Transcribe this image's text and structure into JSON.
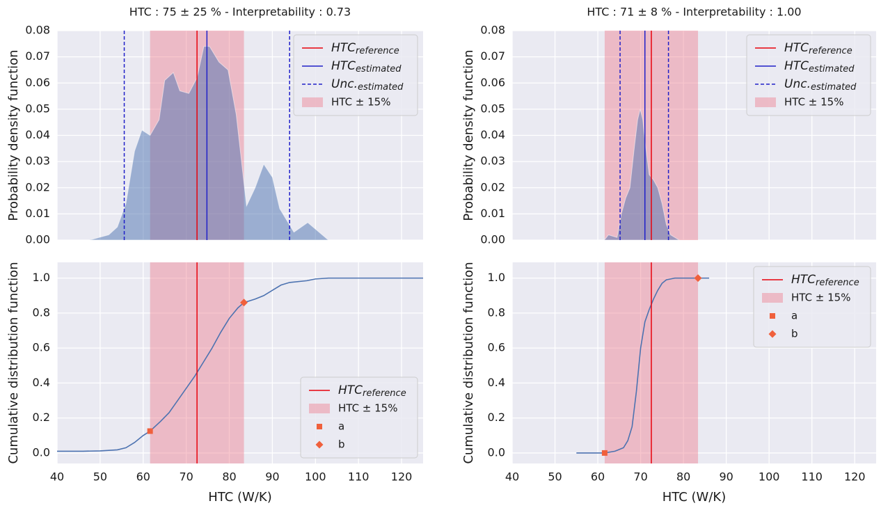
{
  "chart_data": [
    {
      "type": "area",
      "title": "HTC : 75 ± 25 % - Interpretability : 0.73",
      "ylabel": "Probability density function",
      "xlim": [
        40,
        125
      ],
      "ylim": [
        0,
        0.08
      ],
      "xticks": [
        40,
        50,
        60,
        70,
        80,
        90,
        100,
        110,
        120
      ],
      "yticks": [
        {
          "value": 0,
          "label": "0.00"
        },
        0.01,
        0.02,
        0.03,
        0.04,
        0.05,
        0.06,
        0.07,
        0.08
      ],
      "grid": true,
      "legend": "upper right",
      "series": [
        {
          "color": "#4c72b0",
          "x": [
            47.5,
            52,
            54,
            56,
            58,
            59.7,
            61.6,
            63.7,
            65,
            67,
            68.5,
            70.6,
            72.5,
            74.1,
            75.4,
            77.6,
            79.7,
            81.6,
            84,
            86,
            88,
            90,
            91.7,
            95,
            98.2,
            103
          ],
          "values": [
            0,
            0.002,
            0.005,
            0.014,
            0.034,
            0.042,
            0.04,
            0.046,
            0.061,
            0.064,
            0.057,
            0.056,
            0.062,
            0.074,
            0.074,
            0.068,
            0.065,
            0.048,
            0.013,
            0.02,
            0.029,
            0.024,
            0.012,
            0.003,
            0.0067,
            0
          ]
        }
      ],
      "vlines": [
        {
          "name": "HTC",
          "subscript": "reference",
          "x": [
            72.5
          ],
          "color": "#e8000b",
          "style": "solid"
        },
        {
          "name": "HTC",
          "subscript": "estimated",
          "x": [
            74.8
          ],
          "color": "#1f1fc8",
          "style": "solid"
        },
        {
          "name": "Unc.",
          "subscript": "estimated",
          "x": [
            55.6,
            94
          ],
          "color": "#1f1fc8",
          "style": "dashed"
        }
      ],
      "band": {
        "name": "HTC ± 15%",
        "x": [
          61.6,
          83.4
        ],
        "color": "#f08090"
      }
    },
    {
      "type": "area",
      "title": "HTC : 71 ± 8 % - Interpretability : 1.00",
      "ylabel": "Probability density function",
      "xlim": [
        40,
        125
      ],
      "ylim": [
        0,
        0.08
      ],
      "xticks": [
        40,
        50,
        60,
        70,
        80,
        90,
        100,
        110,
        120
      ],
      "yticks": [
        {
          "value": 0,
          "label": "0.00"
        },
        0.01,
        0.02,
        0.03,
        0.04,
        0.05,
        0.06,
        0.07,
        0.08
      ],
      "grid": true,
      "legend": "upper right",
      "series": [
        {
          "color": "#4c72b0",
          "x": [
            61.5,
            62.5,
            63.5,
            64.5,
            65.5,
            66.5,
            67.5,
            68.5,
            69.3,
            69.9,
            70.5,
            71,
            72,
            73,
            74,
            75,
            76,
            77,
            79
          ],
          "values": [
            0,
            0.002,
            0.0015,
            0.001,
            0.01,
            0.016,
            0.02,
            0.035,
            0.046,
            0.05,
            0.046,
            0.038,
            0.025,
            0.023,
            0.02,
            0.014,
            0.006,
            0.002,
            0
          ]
        }
      ],
      "vlines": [
        {
          "name": "HTC",
          "subscript": "reference",
          "x": [
            72.5
          ],
          "color": "#e8000b",
          "style": "solid"
        },
        {
          "name": "HTC",
          "subscript": "estimated",
          "x": [
            71.0
          ],
          "color": "#1f1fc8",
          "style": "solid"
        },
        {
          "name": "Unc.",
          "subscript": "estimated",
          "x": [
            65.2,
            76.5
          ],
          "color": "#1f1fc8",
          "style": "dashed"
        }
      ],
      "band": {
        "name": "HTC ± 15%",
        "x": [
          61.6,
          83.4
        ],
        "color": "#f08090"
      }
    },
    {
      "type": "line",
      "ylabel": "Cumulative distribution function",
      "xlabel": "HTC (W/K)",
      "xlim": [
        40,
        125
      ],
      "ylim": [
        -0.06,
        1.09
      ],
      "xticks": [
        40,
        50,
        60,
        70,
        80,
        90,
        100,
        110,
        120
      ],
      "yticks": [
        {
          "value": 0,
          "label": "0.0"
        },
        0.2,
        0.4,
        0.6,
        0.8,
        {
          "value": 1,
          "label": "1.0"
        }
      ],
      "grid": true,
      "legend": "lower right",
      "series": [
        {
          "color": "#4c72b0",
          "x": [
            40,
            46,
            50,
            54,
            56,
            58,
            60,
            61.6,
            64,
            66,
            68,
            70,
            72,
            74,
            76,
            78,
            80,
            82,
            83.4,
            86,
            88,
            90,
            92,
            94,
            98,
            100,
            103,
            125
          ],
          "values": [
            0.01,
            0.01,
            0.012,
            0.018,
            0.03,
            0.06,
            0.1,
            0.125,
            0.18,
            0.23,
            0.3,
            0.37,
            0.44,
            0.52,
            0.6,
            0.69,
            0.77,
            0.83,
            0.86,
            0.88,
            0.9,
            0.93,
            0.96,
            0.975,
            0.985,
            0.995,
            1.0,
            1.0
          ]
        }
      ],
      "vlines": [
        {
          "name": "HTC",
          "subscript": "reference",
          "x": [
            72.5
          ],
          "color": "#e8000b",
          "style": "solid"
        }
      ],
      "band": {
        "name": "HTC ± 15%",
        "x": [
          61.6,
          83.4
        ],
        "color": "#f08090"
      },
      "markers": [
        {
          "name": "a",
          "x": 61.6,
          "y": 0.125,
          "shape": "square",
          "color": "#f0603c"
        },
        {
          "name": "b",
          "x": 83.4,
          "y": 0.86,
          "shape": "diamond",
          "color": "#f0603c"
        }
      ]
    },
    {
      "type": "line",
      "ylabel": "Cumulative distribution function",
      "xlabel": "HTC (W/K)",
      "xlim": [
        40,
        125
      ],
      "ylim": [
        -0.06,
        1.09
      ],
      "xticks": [
        40,
        50,
        60,
        70,
        80,
        90,
        100,
        110,
        120
      ],
      "yticks": [
        {
          "value": 0,
          "label": "0.0"
        },
        0.2,
        0.4,
        0.6,
        0.8,
        {
          "value": 1,
          "label": "1.0"
        }
      ],
      "grid": true,
      "legend": "upper right",
      "series": [
        {
          "color": "#4c72b0",
          "x": [
            55,
            61.6,
            64,
            66,
            67,
            68,
            69,
            70,
            71,
            72,
            73,
            74,
            75,
            76,
            78,
            86
          ],
          "values": [
            0,
            0,
            0.01,
            0.03,
            0.07,
            0.15,
            0.35,
            0.6,
            0.75,
            0.82,
            0.88,
            0.93,
            0.97,
            0.99,
            1.0,
            1.0
          ]
        }
      ],
      "vlines": [
        {
          "name": "HTC",
          "subscript": "reference",
          "x": [
            72.5
          ],
          "color": "#e8000b",
          "style": "solid"
        }
      ],
      "band": {
        "name": "HTC ± 15%",
        "x": [
          61.6,
          83.4
        ],
        "color": "#f08090"
      },
      "markers": [
        {
          "name": "a",
          "x": 61.6,
          "y": 0,
          "shape": "square",
          "color": "#f0603c"
        },
        {
          "name": "b",
          "x": 83.4,
          "y": 1.0,
          "shape": "diamond",
          "color": "#f0603c"
        }
      ]
    }
  ]
}
